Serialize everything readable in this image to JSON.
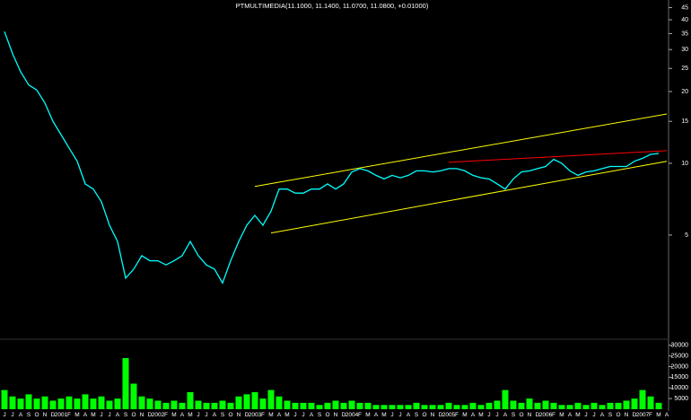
{
  "chart_data": [
    {
      "type": "line",
      "title": "PTMULTIMEDIA(11.1000, 11.1400, 11.0700, 11.0800, +0.01000)",
      "color": "#00ffff",
      "log_scale": true,
      "ylim": [
        1.9,
        48
      ],
      "yticks": [
        5,
        10,
        15,
        20,
        25,
        30,
        35,
        40,
        45
      ],
      "values": [
        35.7,
        28.8,
        24.2,
        21.3,
        20.3,
        17.9,
        15.0,
        13.2,
        11.6,
        10.2,
        8.2,
        7.8,
        6.9,
        5.5,
        4.7,
        3.3,
        3.6,
        4.1,
        3.9,
        3.9,
        3.75,
        3.9,
        4.1,
        4.7,
        4.1,
        3.75,
        3.6,
        3.15,
        3.9,
        4.7,
        5.5,
        6.05,
        5.5,
        6.3,
        7.8,
        7.8,
        7.5,
        7.5,
        7.8,
        7.8,
        8.2,
        7.8,
        8.2,
        9.2,
        9.5,
        9.3,
        8.9,
        8.6,
        8.9,
        8.7,
        8.9,
        9.3,
        9.3,
        9.2,
        9.3,
        9.5,
        9.5,
        9.3,
        8.9,
        8.7,
        8.6,
        8.2,
        7.8,
        8.6,
        9.2,
        9.3,
        9.5,
        9.7,
        10.4,
        10.0,
        9.3,
        8.9,
        9.2,
        9.3,
        9.5,
        9.7,
        9.7,
        9.7,
        10.2,
        10.5,
        10.9,
        11.0,
        null
      ],
      "lines": [
        {
          "color": "#ffff00",
          "x": [
            31,
            82
          ],
          "values": [
            8.0,
            16.1
          ]
        },
        {
          "color": "#ffff00",
          "x": [
            33,
            82
          ],
          "values": [
            5.1,
            10.2
          ]
        },
        {
          "color": "#ff0000",
          "x": [
            55,
            82
          ],
          "values": [
            10.1,
            11.3
          ]
        }
      ]
    },
    {
      "type": "bar",
      "color": "#00ff00",
      "ylim": [
        0,
        32000
      ],
      "yticks": [
        5000,
        10000,
        15000,
        20000,
        25000,
        30000
      ],
      "categories": [
        "J",
        "J",
        "A",
        "S",
        "O",
        "N",
        "D",
        "2001",
        "F",
        "M",
        "A",
        "M",
        "J",
        "J",
        "A",
        "S",
        "O",
        "N",
        "D",
        "2002",
        "F",
        "M",
        "A",
        "M",
        "J",
        "J",
        "A",
        "S",
        "O",
        "N",
        "D",
        "2003",
        "F",
        "M",
        "A",
        "M",
        "J",
        "J",
        "A",
        "S",
        "O",
        "N",
        "D",
        "2004",
        "F",
        "M",
        "A",
        "M",
        "J",
        "J",
        "A",
        "S",
        "O",
        "N",
        "D",
        "2005",
        "F",
        "M",
        "A",
        "M",
        "J",
        "J",
        "A",
        "S",
        "O",
        "N",
        "D",
        "2006",
        "F",
        "M",
        "A",
        "M",
        "J",
        "J",
        "A",
        "S",
        "O",
        "N",
        "D",
        "2007",
        "F",
        "M",
        "A"
      ],
      "values": [
        9000,
        6000,
        5000,
        7000,
        5000,
        6000,
        4000,
        5000,
        6000,
        5000,
        7000,
        5000,
        6000,
        4000,
        5000,
        24000,
        12000,
        6000,
        5000,
        4000,
        3000,
        4000,
        3000,
        8000,
        4000,
        3000,
        3000,
        4000,
        3000,
        6000,
        7000,
        8000,
        5000,
        9000,
        6000,
        4000,
        3000,
        3000,
        3000,
        2000,
        3000,
        4000,
        3000,
        4000,
        3000,
        3000,
        2000,
        2000,
        2000,
        2000,
        2000,
        3000,
        2000,
        2000,
        2000,
        3000,
        2000,
        2000,
        3000,
        2000,
        3000,
        4000,
        9000,
        4000,
        3000,
        5000,
        3000,
        4000,
        3000,
        2000,
        2000,
        3000,
        2000,
        3000,
        2000,
        3000,
        3000,
        4000,
        5000,
        9000,
        6000,
        3000,
        null
      ]
    }
  ]
}
